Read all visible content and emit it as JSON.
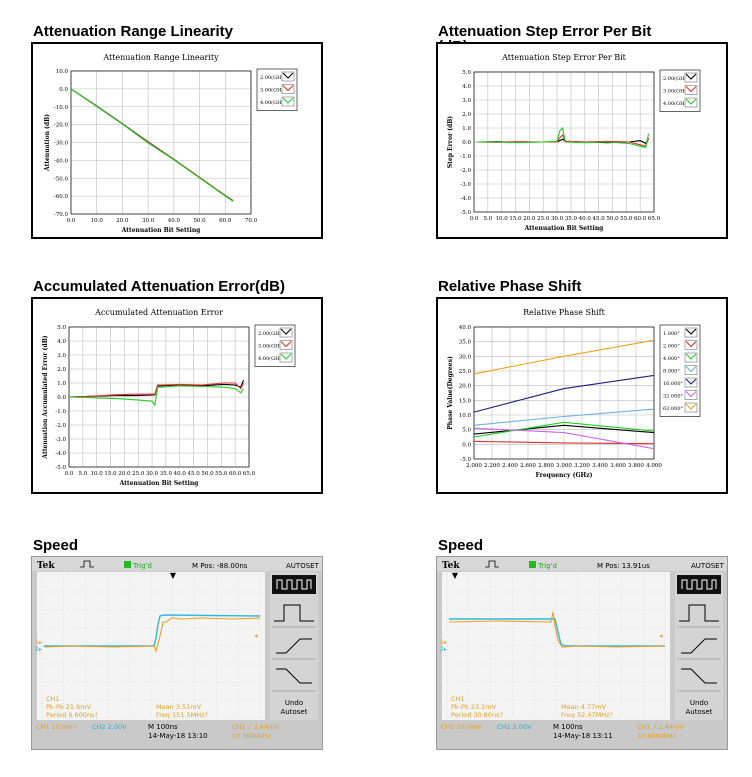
{
  "headings": {
    "h1": "Attenuation Range Linearity",
    "h2": "Attenuation Step Error Per Bit",
    "h2b": "(dB)",
    "h3": "Accumulated Attenuation Error(dB)",
    "h4": "Relative Phase Shift",
    "h5": "Speed",
    "h6": "Speed"
  },
  "chart_data": [
    {
      "type": "line",
      "title": "Attenuation Range Linearity",
      "xlabel": "Attenuation Bit Setting",
      "ylabel": "Attenuation (dB)",
      "xlim": [
        0,
        70
      ],
      "ylim": [
        -70,
        10
      ],
      "xticks": [
        "0.0",
        "10.0",
        "20.0",
        "30.0",
        "40.0",
        "50.0",
        "60.0",
        "70.0"
      ],
      "yticks": [
        "10.0",
        "0.0",
        "-10.0",
        "-20.0",
        "-30.0",
        "-40.0",
        "-50.0",
        "-60.0",
        "-70.0"
      ],
      "legend_position": "top-right",
      "series": [
        {
          "name": "2.00(GHz)",
          "color": "#000000",
          "x": [
            0,
            10,
            20,
            30,
            40,
            50,
            60,
            63
          ],
          "y": [
            0,
            -9.6,
            -19.5,
            -29.6,
            -39.4,
            -49.5,
            -59.7,
            -62.5
          ]
        },
        {
          "name": "3.00(GHz)",
          "color": "#e03030",
          "x": [
            0,
            10,
            20,
            30,
            40,
            50,
            60,
            63
          ],
          "y": [
            0,
            -9.7,
            -19.6,
            -29.8,
            -39.5,
            -49.6,
            -59.8,
            -62.6
          ]
        },
        {
          "name": "4.00(GHz)",
          "color": "#22cc22",
          "x": [
            0,
            10,
            20,
            30,
            40,
            50,
            60,
            63
          ],
          "y": [
            0,
            -9.8,
            -19.7,
            -30.2,
            -39.7,
            -49.8,
            -60.0,
            -62.9
          ]
        }
      ]
    },
    {
      "type": "line",
      "title": "Attenuation Step Error Per Bit",
      "xlabel": "Attenuation Bit Setting",
      "ylabel": "Step Error (dB)",
      "xlim": [
        0,
        65
      ],
      "ylim": [
        -5,
        5
      ],
      "xticks": [
        "0.0",
        "5.0",
        "10.0",
        "15.0",
        "20.0",
        "25.0",
        "30.0",
        "35.0",
        "40.0",
        "45.0",
        "50.0",
        "55.0",
        "60.0",
        "65.0"
      ],
      "yticks": [
        "5.0",
        "4.0",
        "3.0",
        "2.0",
        "1.0",
        "0.0",
        "-1.0",
        "-2.0",
        "-3.0",
        "-4.0",
        "-5.0"
      ],
      "legend_position": "top-right",
      "series": [
        {
          "name": "2.00(GHz)",
          "color": "#000000",
          "x": [
            1,
            8,
            16,
            24,
            30,
            31,
            32,
            33,
            40,
            48,
            56,
            60,
            62,
            63
          ],
          "y": [
            0,
            0.02,
            -0.02,
            0,
            0,
            0.1,
            0.2,
            0.05,
            0,
            -0.05,
            0,
            0.1,
            -0.1,
            0.2
          ]
        },
        {
          "name": "3.00(GHz)",
          "color": "#e03030",
          "x": [
            1,
            8,
            16,
            24,
            30,
            31,
            32,
            33,
            40,
            48,
            56,
            60,
            62,
            63
          ],
          "y": [
            0,
            -0.02,
            0.02,
            0,
            0,
            0.3,
            0.5,
            0.05,
            0,
            0.05,
            0,
            -0.2,
            -0.3,
            0.3
          ]
        },
        {
          "name": "4.00(GHz)",
          "color": "#22cc22",
          "x": [
            1,
            8,
            16,
            24,
            30,
            31,
            32,
            33,
            40,
            48,
            56,
            60,
            62,
            63
          ],
          "y": [
            0,
            0,
            -0.05,
            0,
            0.05,
            0.8,
            1.0,
            0,
            -0.05,
            0,
            -0.1,
            -0.3,
            -0.4,
            0.6
          ]
        }
      ]
    },
    {
      "type": "line",
      "title": "Accumulated Attenuation Error",
      "xlabel": "Attenuation Bit Setting",
      "ylabel": "Attenuation Accumulated Error (dB)",
      "xlim": [
        0,
        65
      ],
      "ylim": [
        -5,
        5
      ],
      "xticks": [
        "0.0",
        "5.0",
        "10.0",
        "15.0",
        "20.0",
        "25.0",
        "30.0",
        "35.0",
        "40.0",
        "45.0",
        "50.0",
        "55.0",
        "60.0",
        "65.0"
      ],
      "yticks": [
        "5.0",
        "4.0",
        "3.0",
        "2.0",
        "1.0",
        "0.0",
        "-1.0",
        "-2.0",
        "-3.0",
        "-4.0",
        "-5.0"
      ],
      "legend_position": "top-right",
      "series": [
        {
          "name": "2.00(GHz)",
          "color": "#000000",
          "x": [
            0,
            8,
            16,
            24,
            31,
            32,
            33,
            40,
            48,
            56,
            60,
            62,
            63
          ],
          "y": [
            0,
            0.05,
            0.1,
            0.1,
            0.15,
            0.8,
            0.8,
            0.85,
            0.8,
            0.9,
            0.85,
            0.7,
            1.2
          ]
        },
        {
          "name": "3.00(GHz)",
          "color": "#e03030",
          "x": [
            0,
            8,
            16,
            24,
            31,
            32,
            33,
            40,
            48,
            56,
            60,
            62,
            63
          ],
          "y": [
            0,
            0.05,
            0.15,
            0.2,
            0.2,
            0.85,
            0.85,
            0.9,
            0.85,
            1.0,
            1.0,
            0.6,
            1.0
          ]
        },
        {
          "name": "4.00(GHz)",
          "color": "#22cc22",
          "x": [
            0,
            8,
            16,
            24,
            30,
            31,
            32,
            33,
            40,
            48,
            56,
            60,
            62,
            63
          ],
          "y": [
            0,
            -0.05,
            -0.1,
            -0.2,
            -0.3,
            -0.6,
            0.7,
            0.7,
            0.8,
            0.75,
            0.7,
            0.6,
            0.3,
            0.6
          ]
        }
      ]
    },
    {
      "type": "line",
      "title": "Relative Phase Shift",
      "xlabel": "Frequency (GHz)",
      "ylabel": "Phase Value(Degrees)",
      "xlim": [
        2.0,
        4.0
      ],
      "ylim": [
        -5,
        40
      ],
      "xticks": [
        "2.000",
        "2.200",
        "2.400",
        "2.600",
        "2.800",
        "3.000",
        "3.200",
        "3.400",
        "3.600",
        "3.800",
        "4.000"
      ],
      "yticks": [
        "40.0",
        "35.0",
        "30.0",
        "25.0",
        "20.0",
        "15.0",
        "10.0",
        "5.0",
        "0.0",
        "-5.0"
      ],
      "legend_position": "top-right",
      "series": [
        {
          "name": "1.000°",
          "color": "#000000",
          "x": [
            2.0,
            3.0,
            4.0
          ],
          "y": [
            3.5,
            6.5,
            4.0
          ]
        },
        {
          "name": "2.000°",
          "color": "#e03030",
          "x": [
            2.0,
            3.0,
            4.0
          ],
          "y": [
            1.0,
            0.5,
            0.2
          ]
        },
        {
          "name": "4.000°",
          "color": "#22cc22",
          "x": [
            2.0,
            3.0,
            4.0
          ],
          "y": [
            2.5,
            7.5,
            4.5
          ]
        },
        {
          "name": "8.000°",
          "color": "#6aaee0",
          "x": [
            2.0,
            3.0,
            4.0
          ],
          "y": [
            6.5,
            9.5,
            12.0
          ]
        },
        {
          "name": "16.000°",
          "color": "#1a1a80",
          "x": [
            2.0,
            3.0,
            4.0
          ],
          "y": [
            11.0,
            19.0,
            23.5
          ]
        },
        {
          "name": "32.000°",
          "color": "#cc66ee",
          "x": [
            2.0,
            3.0,
            4.0
          ],
          "y": [
            5.5,
            4.0,
            -1.5
          ]
        },
        {
          "name": "63.000°",
          "color": "#f0a020",
          "x": [
            2.0,
            3.0,
            4.0
          ],
          "y": [
            24.0,
            30.0,
            35.5
          ]
        }
      ]
    }
  ],
  "scopes": [
    {
      "brand": "Tek",
      "trig": "Trig'd",
      "mpos": "M Pos: -88.00ns",
      "autoset": "AUTOSET",
      "undo": "Undo",
      "undo2": "Autoset",
      "ch1": "CH1",
      "pkpk": "Pk-Pk 21.6mV",
      "period": "Period 6.600ns?",
      "mean": "Mean 3.51mV",
      "freq": "Freq 151.5MHz?",
      "ch1scale": "CH1  10.0mV",
      "ch2scale": "CH2  2.00V",
      "timebase": "M 100ns",
      "date": "14-May-18 13:10",
      "trigset": "CH1 ╱ 2.44mV",
      "trigfreq": "10.0000kHz",
      "edge": "rising"
    },
    {
      "brand": "Tek",
      "trig": "Trig'd",
      "mpos": "M Pos: 13.91us",
      "autoset": "AUTOSET",
      "undo": "Undo",
      "undo2": "Autoset",
      "ch1": "CH1",
      "pkpk": "Pk-Pk 23.2mV",
      "period": "Period 30.80ns?",
      "mean": "Mean 4.77mV",
      "freq": "Freq 32.47MHz?",
      "ch1scale": "CH1  10.0mV",
      "ch2scale": "CH2  2.00V",
      "timebase": "M 100ns",
      "date": "14-May-18 13:11",
      "trigset": "CH1 ╱ 2.44mV",
      "trigfreq": "10.0000kHz",
      "edge": "falling"
    }
  ]
}
